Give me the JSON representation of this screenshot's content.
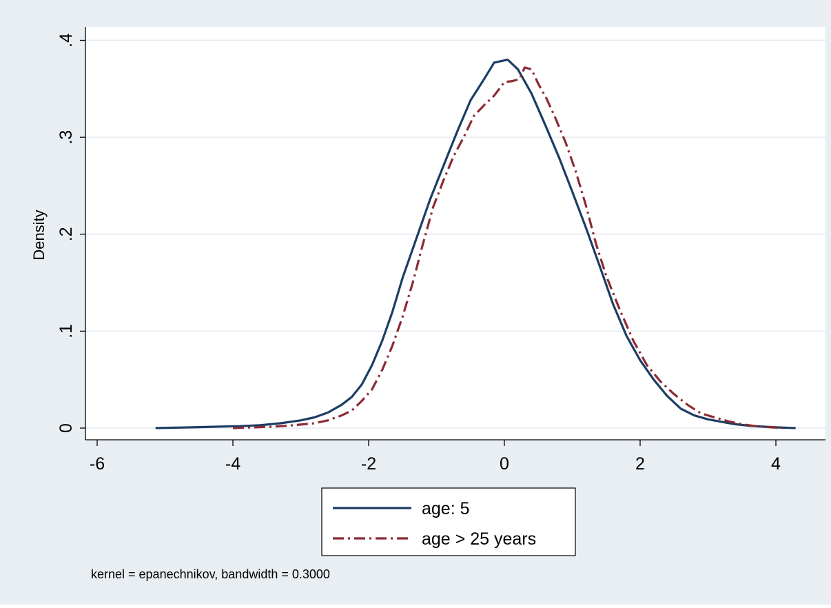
{
  "chart_data": {
    "type": "line",
    "title": "",
    "xlabel": "",
    "ylabel": "Density",
    "xlim": [
      -6.2,
      4.5
    ],
    "ylim": [
      0,
      0.4
    ],
    "x_ticks": [
      -6,
      -4,
      -2,
      0,
      2,
      4
    ],
    "x_tick_labels": [
      "-6",
      "-4",
      "-2",
      "0",
      "2",
      "4"
    ],
    "y_ticks": [
      0,
      0.1,
      0.2,
      0.3,
      0.4
    ],
    "y_tick_labels": [
      "0",
      ".1",
      ".2",
      ".3",
      ".4"
    ],
    "grid": true,
    "legend_position": "bottom-center",
    "note": "kernel = epanechnikov, bandwidth = 0.3000",
    "colors": {
      "outer_background": "#e9eef3",
      "plot_background": "#ffffff",
      "grid": "#e9eef3",
      "series1": "#1c3d63",
      "series2": "#8c2b34"
    },
    "series": [
      {
        "name": "age: 5",
        "style": "solid",
        "x": [
          -5.14,
          -4.8,
          -4.5,
          -4.2,
          -3.9,
          -3.6,
          -3.3,
          -3.0,
          -2.8,
          -2.6,
          -2.4,
          -2.25,
          -2.1,
          -1.95,
          -1.8,
          -1.65,
          -1.5,
          -1.3,
          -1.1,
          -0.9,
          -0.7,
          -0.5,
          -0.3,
          -0.15,
          0.05,
          0.2,
          0.4,
          0.6,
          0.8,
          1.0,
          1.2,
          1.4,
          1.6,
          1.8,
          2.0,
          2.2,
          2.4,
          2.6,
          2.8,
          3.0,
          3.2,
          3.4,
          3.6,
          3.8,
          4.0,
          4.29
        ],
        "y": [
          0.0,
          0.0005,
          0.001,
          0.0015,
          0.002,
          0.003,
          0.005,
          0.008,
          0.011,
          0.016,
          0.024,
          0.032,
          0.045,
          0.065,
          0.09,
          0.12,
          0.155,
          0.195,
          0.235,
          0.27,
          0.305,
          0.338,
          0.36,
          0.377,
          0.38,
          0.37,
          0.345,
          0.313,
          0.28,
          0.244,
          0.207,
          0.168,
          0.128,
          0.095,
          0.07,
          0.05,
          0.033,
          0.02,
          0.013,
          0.009,
          0.0065,
          0.004,
          0.0025,
          0.0015,
          0.0008,
          0.0
        ]
      },
      {
        "name": "age > 25 years",
        "style": "dash-dot",
        "x": [
          -4.0,
          -3.7,
          -3.4,
          -3.1,
          -2.8,
          -2.6,
          -2.4,
          -2.25,
          -2.1,
          -1.95,
          -1.8,
          -1.65,
          -1.5,
          -1.35,
          -1.2,
          -1.05,
          -0.9,
          -0.75,
          -0.6,
          -0.45,
          -0.3,
          -0.15,
          0.0,
          0.12,
          0.22,
          0.3,
          0.4,
          0.5,
          0.62,
          0.75,
          0.9,
          1.05,
          1.2,
          1.35,
          1.5,
          1.7,
          1.9,
          2.1,
          2.3,
          2.5,
          2.7,
          2.9,
          3.1,
          3.3,
          3.5,
          3.7,
          3.9,
          4.1
        ],
        "y": [
          0.0,
          0.0008,
          0.0015,
          0.003,
          0.005,
          0.008,
          0.013,
          0.018,
          0.028,
          0.04,
          0.06,
          0.085,
          0.115,
          0.15,
          0.19,
          0.228,
          0.255,
          0.28,
          0.3,
          0.322,
          0.333,
          0.343,
          0.357,
          0.358,
          0.36,
          0.372,
          0.37,
          0.355,
          0.34,
          0.32,
          0.295,
          0.265,
          0.23,
          0.19,
          0.157,
          0.122,
          0.09,
          0.065,
          0.048,
          0.035,
          0.024,
          0.015,
          0.011,
          0.007,
          0.004,
          0.002,
          0.001,
          0.0
        ]
      }
    ]
  }
}
